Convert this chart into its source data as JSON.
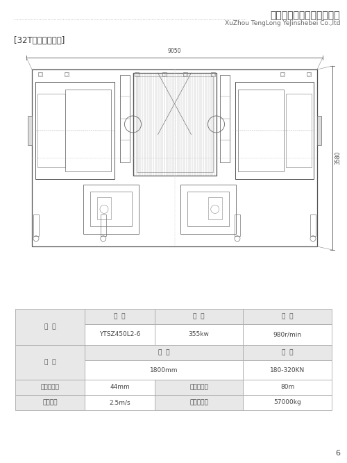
{
  "page_title_cn": "徐州腾龙冶金设备有限公司",
  "page_title_en": "XuZhou TengLong YeJinshebei Co.,ltd",
  "product_title": "[32T双料车卷扬机]",
  "dim_width": "9050",
  "dim_height": "3580",
  "page_number": "6",
  "bg_color": "#ffffff",
  "line_color": "#888888",
  "table_cell_bg": "#e8e8e8",
  "table_data": {
    "row1_header": "电  机",
    "row1_col1_h": "型  号",
    "row1_col2_h": "功  率",
    "row1_col3_h": "转  速",
    "row1_col1_v": "YTSZ450L2-6",
    "row1_col2_v": "355kw",
    "row1_col3_v": "980r/min",
    "row2_header": "卷  筒",
    "row2_col1_h": "直  径",
    "row2_col2_h": "拉  力",
    "row2_col1_v": "1800mm",
    "row2_col2_v": "180-320KN",
    "row3_col1": "钢丝绳直径",
    "row3_col2": "44mm",
    "row3_col3": "钢丝绳行程",
    "row3_col4": "80m",
    "row4_col1": "卷扬速度",
    "row4_col2": "2.5m/s",
    "row4_col3": "卷扬机质量",
    "row4_col4": "57000kg"
  },
  "font_size_title_cn": 10,
  "font_size_title_en": 6.5,
  "font_size_product": 8.5,
  "font_size_table": 6.5,
  "font_size_dim": 5.5,
  "font_size_page": 8
}
